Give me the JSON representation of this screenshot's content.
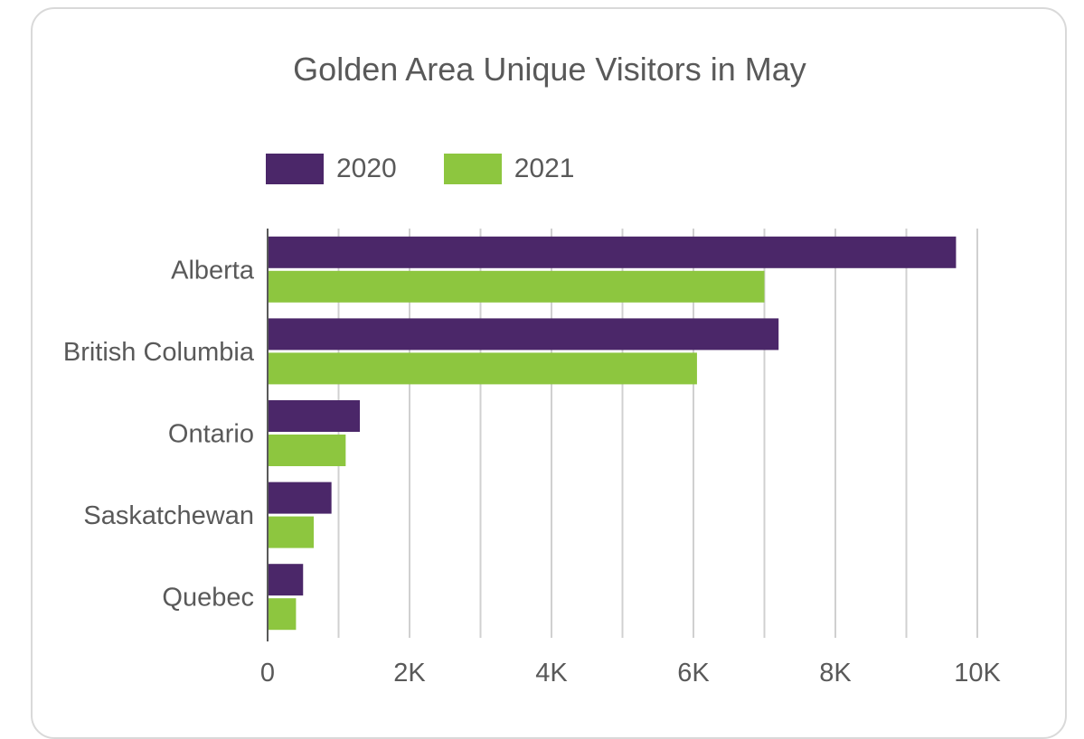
{
  "chart_data": {
    "type": "bar",
    "orientation": "horizontal",
    "title": "Golden Area Unique Visitors in May",
    "categories": [
      "Alberta",
      "British Columbia",
      "Ontario",
      "Saskatchewan",
      "Quebec"
    ],
    "series": [
      {
        "name": "2020",
        "color": "#4b2769",
        "values": [
          9700,
          7200,
          1300,
          900,
          500
        ]
      },
      {
        "name": "2021",
        "color": "#8dc63f",
        "values": [
          7000,
          6050,
          1100,
          650,
          400
        ]
      }
    ],
    "xlim": [
      0,
      10000
    ],
    "x_ticks": [
      {
        "value": 0,
        "label": "0"
      },
      {
        "value": 2000,
        "label": "2K"
      },
      {
        "value": 4000,
        "label": "4K"
      },
      {
        "value": 6000,
        "label": "6K"
      },
      {
        "value": 8000,
        "label": "8K"
      },
      {
        "value": 10000,
        "label": "10K"
      }
    ],
    "grid": true,
    "legend_position": "top-left"
  }
}
